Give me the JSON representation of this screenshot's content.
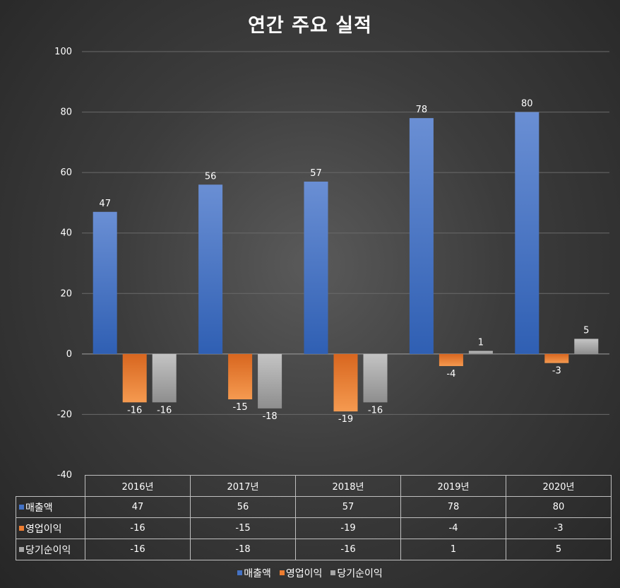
{
  "chart_data": {
    "type": "bar",
    "title": "연간 주요 실적",
    "categories": [
      "2016년",
      "2017년",
      "2018년",
      "2019년",
      "2020년"
    ],
    "series": [
      {
        "name": "매출액",
        "values": [
          47,
          56,
          57,
          78,
          80
        ],
        "color": "#4472c4"
      },
      {
        "name": "영업이익",
        "values": [
          -16,
          -15,
          -19,
          -4,
          -3
        ],
        "color": "#ed7d31"
      },
      {
        "name": "당기순이익",
        "values": [
          -16,
          -18,
          -16,
          1,
          5
        ],
        "color": "#a5a5a5"
      }
    ],
    "ylim": [
      -40,
      100
    ],
    "yticks": [
      -40,
      -20,
      0,
      20,
      40,
      60,
      80,
      100
    ],
    "grid": true,
    "legend": "bottom",
    "data_table": true
  }
}
